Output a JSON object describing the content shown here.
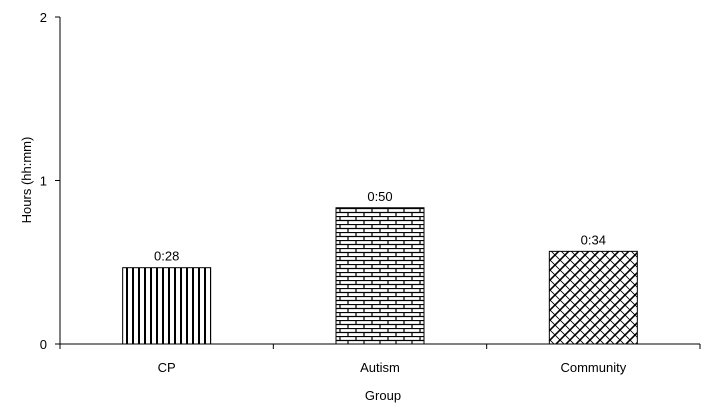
{
  "chart_data": {
    "type": "bar",
    "title": "",
    "xlabel": "Group",
    "ylabel": "Hours  (hh:mm)",
    "categories": [
      "CP",
      "Autism",
      "Community"
    ],
    "values": [
      0.4667,
      0.8333,
      0.5667
    ],
    "data_labels": [
      "0:28",
      "0:50",
      "0:34"
    ],
    "bar_patterns": [
      "vertical-lines",
      "brick",
      "diamond-lattice"
    ],
    "ylim": [
      0,
      2
    ],
    "yticks": [
      0,
      1,
      2
    ],
    "ytick_labels": [
      "0",
      "1",
      "2"
    ],
    "grid": false,
    "legend": "none",
    "colors": {
      "stroke": "#000000",
      "fill": "#ffffff"
    }
  }
}
